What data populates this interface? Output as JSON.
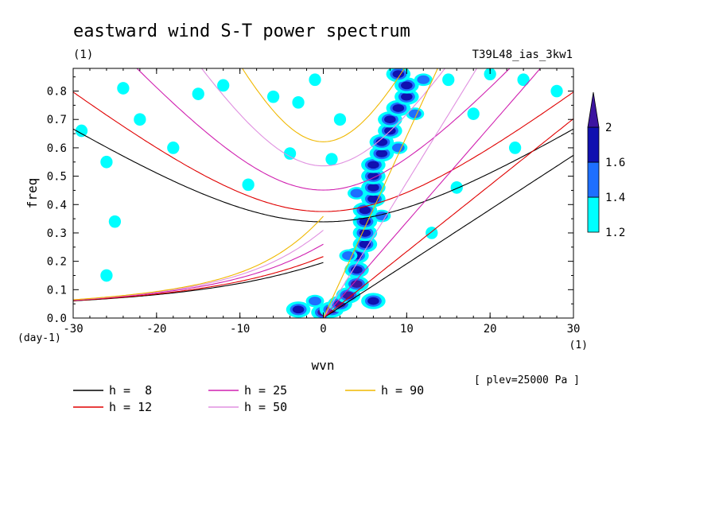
{
  "chart_data": {
    "type": "heatmap",
    "title": "eastward wind S-T power spectrum",
    "subtitle_left": "(1)",
    "subtitle_right": "T39L48_ias_3kw1",
    "xlabel": "wvn",
    "ylabel": "freq",
    "x_unit_label": "(1)",
    "y_unit_label": "(day-1)",
    "annotation": "[ plev=25000 Pa ]",
    "xlim": [
      -30,
      30
    ],
    "ylim": [
      0,
      0.88
    ],
    "x_ticks": [
      -30,
      -20,
      -10,
      0,
      10,
      20,
      30
    ],
    "x_tick_labels": [
      "-30",
      "-20",
      "-10",
      "0",
      "10",
      "20",
      "30"
    ],
    "y_ticks": [
      0,
      0.1,
      0.2,
      0.3,
      0.4,
      0.5,
      0.6,
      0.7,
      0.8
    ],
    "y_tick_labels": [
      "0.0",
      "0.1",
      "0.2",
      "0.3",
      "0.4",
      "0.5",
      "0.6",
      "0.7",
      "0.8"
    ],
    "colorbar": {
      "levels": [
        1.2,
        1.4,
        1.6,
        2
      ],
      "labels": [
        "1.2",
        "1.4",
        "1.6",
        "2"
      ],
      "colors": [
        "#00ffff",
        "#1e6fff",
        "#1010b0",
        "#3c14a0"
      ]
    },
    "series": [
      {
        "name": "h =  8",
        "h": 8,
        "color": "#000000"
      },
      {
        "name": "h = 12",
        "h": 12,
        "color": "#e00000"
      },
      {
        "name": "h = 25",
        "h": 25,
        "color": "#d020b0"
      },
      {
        "name": "h = 50",
        "h": 50,
        "color": "#e090e0"
      },
      {
        "name": "h = 90",
        "h": 90,
        "color": "#f0b800"
      }
    ],
    "spectral_peaks": [
      {
        "x": 0,
        "y": 0.02,
        "level": 2
      },
      {
        "x": 1,
        "y": 0.03,
        "level": 2
      },
      {
        "x": 2,
        "y": 0.05,
        "level": 2
      },
      {
        "x": 3,
        "y": 0.08,
        "level": 2
      },
      {
        "x": 4,
        "y": 0.12,
        "level": 2
      },
      {
        "x": 4,
        "y": 0.17,
        "level": 1.6
      },
      {
        "x": 4,
        "y": 0.22,
        "level": 1.6
      },
      {
        "x": 5,
        "y": 0.26,
        "level": 1.6
      },
      {
        "x": 5,
        "y": 0.3,
        "level": 1.6
      },
      {
        "x": 5,
        "y": 0.34,
        "level": 1.6
      },
      {
        "x": 5,
        "y": 0.38,
        "level": 1.6
      },
      {
        "x": 6,
        "y": 0.42,
        "level": 1.6
      },
      {
        "x": 6,
        "y": 0.46,
        "level": 1.6
      },
      {
        "x": 6,
        "y": 0.5,
        "level": 1.6
      },
      {
        "x": 6,
        "y": 0.54,
        "level": 1.6
      },
      {
        "x": 7,
        "y": 0.58,
        "level": 1.6
      },
      {
        "x": 7,
        "y": 0.62,
        "level": 1.6
      },
      {
        "x": 8,
        "y": 0.66,
        "level": 1.6
      },
      {
        "x": 8,
        "y": 0.7,
        "level": 1.6
      },
      {
        "x": 9,
        "y": 0.74,
        "level": 1.6
      },
      {
        "x": 10,
        "y": 0.78,
        "level": 1.6
      },
      {
        "x": 10,
        "y": 0.82,
        "level": 1.6
      },
      {
        "x": 9,
        "y": 0.86,
        "level": 1.6
      },
      {
        "x": -3,
        "y": 0.03,
        "level": 1.6
      },
      {
        "x": 6,
        "y": 0.06,
        "level": 1.6
      },
      {
        "x": 3,
        "y": 0.22,
        "level": 1.4
      },
      {
        "x": 7,
        "y": 0.36,
        "level": 1.4
      },
      {
        "x": 4,
        "y": 0.44,
        "level": 1.4
      },
      {
        "x": 9,
        "y": 0.6,
        "level": 1.4
      },
      {
        "x": 11,
        "y": 0.72,
        "level": 1.4
      },
      {
        "x": 12,
        "y": 0.84,
        "level": 1.4
      },
      {
        "x": -1,
        "y": 0.06,
        "level": 1.4
      },
      {
        "x": -29,
        "y": 0.66,
        "level": 1.2
      },
      {
        "x": -24,
        "y": 0.81,
        "level": 1.2
      },
      {
        "x": -22,
        "y": 0.7,
        "level": 1.2
      },
      {
        "x": -15,
        "y": 0.79,
        "level": 1.2
      },
      {
        "x": -12,
        "y": 0.82,
        "level": 1.2
      },
      {
        "x": -18,
        "y": 0.6,
        "level": 1.2
      },
      {
        "x": -26,
        "y": 0.55,
        "level": 1.2
      },
      {
        "x": -6,
        "y": 0.78,
        "level": 1.2
      },
      {
        "x": -3,
        "y": 0.76,
        "level": 1.2
      },
      {
        "x": 24,
        "y": 0.84,
        "level": 1.2
      },
      {
        "x": 28,
        "y": 0.8,
        "level": 1.2
      },
      {
        "x": 18,
        "y": 0.72,
        "level": 1.2
      },
      {
        "x": 23,
        "y": 0.6,
        "level": 1.2
      },
      {
        "x": 15,
        "y": 0.84,
        "level": 1.2
      },
      {
        "x": -25,
        "y": 0.34,
        "level": 1.2
      },
      {
        "x": -26,
        "y": 0.15,
        "level": 1.2
      },
      {
        "x": -9,
        "y": 0.47,
        "level": 1.2
      },
      {
        "x": -4,
        "y": 0.58,
        "level": 1.2
      },
      {
        "x": 2,
        "y": 0.7,
        "level": 1.2
      },
      {
        "x": 1,
        "y": 0.56,
        "level": 1.2
      },
      {
        "x": 13,
        "y": 0.3,
        "level": 1.2
      },
      {
        "x": 16,
        "y": 0.46,
        "level": 1.2
      },
      {
        "x": -1,
        "y": 0.84,
        "level": 1.2
      },
      {
        "x": 20,
        "y": 0.86,
        "level": 1.2
      }
    ],
    "legend_placement": "bottom"
  }
}
